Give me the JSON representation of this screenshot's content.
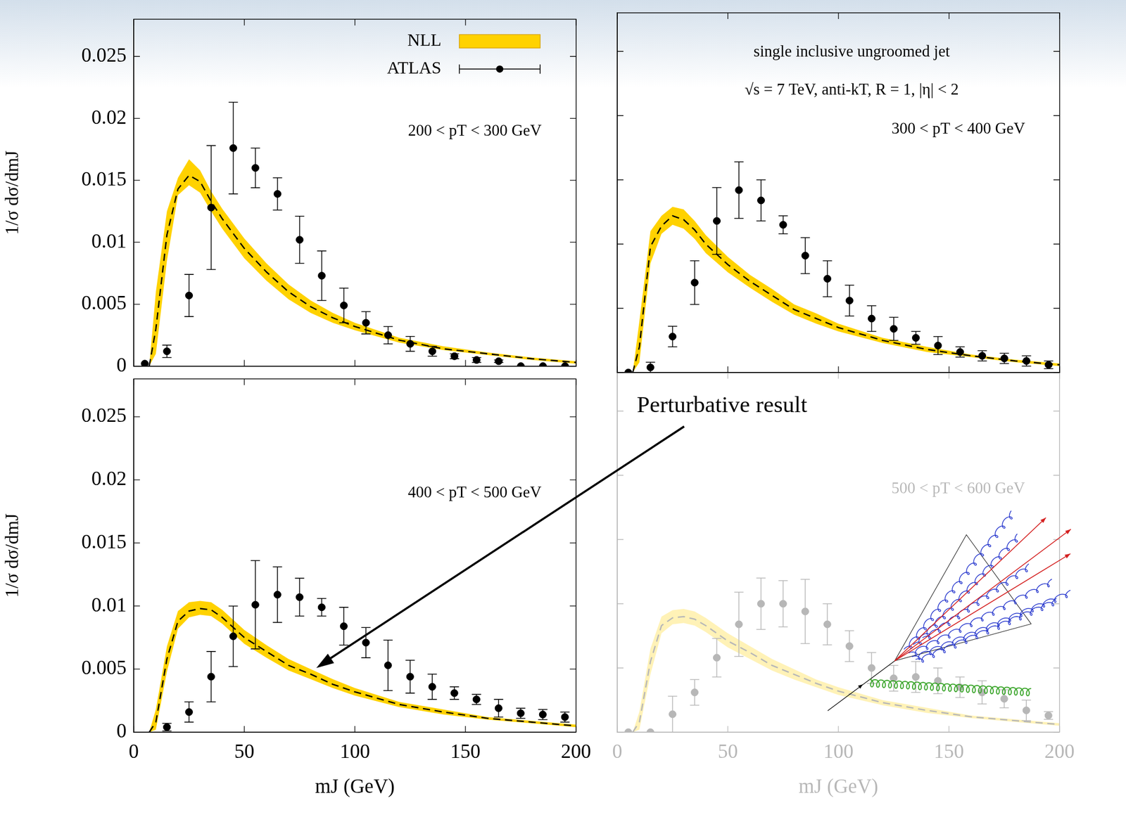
{
  "chart_data": [
    {
      "type": "line",
      "annotations": [
        "200 < pT < 300 GeV"
      ],
      "legend": "upper right",
      "y_label": "1/σ dσ/dmJ",
      "xlim": [
        0,
        200
      ],
      "xticks": [
        0,
        50,
        100,
        150,
        200
      ],
      "ylim": [
        0,
        0.028
      ],
      "yticks": [
        0,
        0.005,
        0.01,
        0.015,
        0.02,
        0.025
      ],
      "grid": false,
      "tick_labels": "y",
      "series": [
        {
          "name": "NLL",
          "type": "band",
          "color": "#ffd200",
          "x": [
            7,
            10,
            15,
            20,
            25,
            30,
            35,
            40,
            50,
            60,
            70,
            80,
            90,
            100,
            120,
            140,
            160,
            180,
            200
          ],
          "lower": [
            0,
            0.001,
            0.0085,
            0.0138,
            0.0146,
            0.014,
            0.0125,
            0.0111,
            0.0087,
            0.0069,
            0.0054,
            0.0043,
            0.0035,
            0.0029,
            0.0019,
            0.0013,
            0.0009,
            0.0005,
            0.0002
          ],
          "upper": [
            0,
            0.006,
            0.0125,
            0.0152,
            0.0167,
            0.0158,
            0.0141,
            0.0127,
            0.0103,
            0.0083,
            0.0066,
            0.0053,
            0.0043,
            0.0035,
            0.0023,
            0.0016,
            0.0011,
            0.0007,
            0.0004
          ]
        },
        {
          "type": "line",
          "line_style": "dashed",
          "color": "#000000",
          "x": [
            7,
            10,
            15,
            20,
            25,
            30,
            35,
            40,
            50,
            60,
            70,
            80,
            90,
            100,
            120,
            140,
            160,
            180,
            200
          ],
          "values": [
            0,
            0.003,
            0.0106,
            0.0143,
            0.0154,
            0.0149,
            0.0133,
            0.0119,
            0.0095,
            0.0076,
            0.006,
            0.0048,
            0.0039,
            0.0032,
            0.0021,
            0.0014,
            0.001,
            0.0006,
            0.0003
          ]
        },
        {
          "name": "ATLAS",
          "type": "scatter",
          "marker": "circle",
          "color": "#000000",
          "x": [
            5,
            15,
            25,
            35,
            45,
            55,
            65,
            75,
            85,
            95,
            105,
            115,
            125,
            135,
            145,
            155,
            165,
            175,
            185,
            195
          ],
          "values": [
            0.0002,
            0.0012,
            0.0057,
            0.0128,
            0.0176,
            0.016,
            0.0139,
            0.0102,
            0.0073,
            0.0049,
            0.0035,
            0.0025,
            0.0018,
            0.0012,
            0.0008,
            0.0005,
            0.0004,
            0,
            0,
            0
          ],
          "errors": [
            0,
            0.0005,
            0.0017,
            0.005,
            0.0037,
            0.0016,
            0.0013,
            0.0019,
            0.002,
            0.0014,
            0.0009,
            0.0007,
            0.0006,
            0.0004,
            0.0002,
            0.0002,
            0.0001,
            0,
            0,
            0
          ]
        }
      ]
    },
    {
      "type": "line",
      "annotations": [
        "single inclusive ungroomed jet",
        "√s = 7 TeV, anti-kT, R = 1, |η| < 2",
        "300 < pT < 400 GeV"
      ],
      "xlim": [
        0,
        200
      ],
      "xticks": [
        0,
        50,
        100,
        150,
        200
      ],
      "ylim": [
        0,
        0.028
      ],
      "yticks": [
        0,
        0.005,
        0.01,
        0.015,
        0.02,
        0.025
      ],
      "grid": false,
      "tick_labels": false,
      "series": [
        {
          "type": "band",
          "color": "#ffd200",
          "x": [
            7,
            10,
            15,
            20,
            25,
            30,
            35,
            40,
            50,
            60,
            70,
            80,
            90,
            100,
            120,
            140,
            160,
            180,
            200
          ],
          "lower": [
            0,
            0.0008,
            0.0085,
            0.0108,
            0.0115,
            0.0112,
            0.0104,
            0.0093,
            0.0078,
            0.0066,
            0.0055,
            0.0045,
            0.0038,
            0.0032,
            0.0023,
            0.0016,
            0.0012,
            0.0008,
            0.0005
          ],
          "upper": [
            0,
            0.004,
            0.011,
            0.0122,
            0.0129,
            0.0127,
            0.0118,
            0.0107,
            0.009,
            0.0076,
            0.0065,
            0.0053,
            0.0046,
            0.0038,
            0.0027,
            0.002,
            0.0014,
            0.001,
            0.0007
          ]
        },
        {
          "type": "line",
          "line_style": "dashed",
          "color": "#000000",
          "x": [
            7,
            10,
            15,
            20,
            25,
            30,
            35,
            40,
            50,
            60,
            70,
            80,
            90,
            100,
            120,
            140,
            160,
            180,
            200
          ],
          "values": [
            0,
            0.002,
            0.0098,
            0.0114,
            0.0122,
            0.0119,
            0.0111,
            0.01,
            0.0084,
            0.0071,
            0.006,
            0.0049,
            0.0042,
            0.0035,
            0.0025,
            0.0018,
            0.0013,
            0.0009,
            0.0006
          ]
        },
        {
          "type": "scatter",
          "marker": "circle",
          "color": "#000000",
          "x": [
            5,
            15,
            25,
            35,
            45,
            55,
            65,
            75,
            85,
            95,
            105,
            115,
            125,
            135,
            145,
            155,
            165,
            175,
            185,
            195
          ],
          "values": [
            0,
            0.0004,
            0.0028,
            0.007,
            0.0118,
            0.0142,
            0.0134,
            0.0115,
            0.0091,
            0.0073,
            0.0056,
            0.0042,
            0.0034,
            0.0027,
            0.0021,
            0.0016,
            0.0013,
            0.0011,
            0.0009,
            0.0006
          ],
          "errors": [
            0,
            0.0004,
            0.0008,
            0.0017,
            0.0026,
            0.0022,
            0.0016,
            0.0007,
            0.0014,
            0.0014,
            0.0012,
            0.001,
            0.0009,
            0.0005,
            0.0007,
            0.0004,
            0.0004,
            0.0004,
            0.0004,
            0.0003
          ]
        }
      ]
    },
    {
      "type": "line",
      "annotations": [
        "400 < pT < 500 GeV"
      ],
      "x_label": "mJ (GeV)",
      "y_label": "1/σ dσ/dmJ",
      "xlim": [
        0,
        200
      ],
      "xticks": [
        0,
        50,
        100,
        150,
        200
      ],
      "ylim": [
        0,
        0.028
      ],
      "yticks": [
        0,
        0.005,
        0.01,
        0.015,
        0.02,
        0.025
      ],
      "grid": false,
      "series": [
        {
          "type": "band",
          "color": "#ffd200",
          "x": [
            7,
            10,
            15,
            20,
            25,
            30,
            35,
            40,
            50,
            60,
            70,
            80,
            90,
            100,
            120,
            140,
            160,
            180,
            200
          ],
          "lower": [
            0,
            0.0002,
            0.0048,
            0.0082,
            0.0091,
            0.0093,
            0.0092,
            0.0086,
            0.007,
            0.0059,
            0.0049,
            0.0042,
            0.0035,
            0.0029,
            0.002,
            0.0014,
            0.001,
            0.0007,
            0.0004
          ],
          "upper": [
            0,
            0.0018,
            0.0068,
            0.0096,
            0.0103,
            0.0104,
            0.0103,
            0.0097,
            0.0081,
            0.0069,
            0.0058,
            0.005,
            0.0042,
            0.0035,
            0.0024,
            0.0018,
            0.0012,
            0.0009,
            0.0006
          ]
        },
        {
          "type": "line",
          "line_style": "dashed",
          "color": "#000000",
          "x": [
            7,
            10,
            15,
            20,
            25,
            30,
            35,
            40,
            50,
            60,
            70,
            80,
            90,
            100,
            120,
            140,
            160,
            180,
            200
          ],
          "values": [
            0,
            0.0008,
            0.0058,
            0.0088,
            0.0096,
            0.0098,
            0.0097,
            0.0091,
            0.0075,
            0.0064,
            0.0053,
            0.0046,
            0.0038,
            0.0032,
            0.0022,
            0.0016,
            0.0011,
            0.0008,
            0.0005
          ]
        },
        {
          "type": "scatter",
          "marker": "circle",
          "color": "#000000",
          "x": [
            15,
            25,
            35,
            45,
            55,
            65,
            75,
            85,
            95,
            105,
            115,
            125,
            135,
            145,
            155,
            165,
            175,
            185,
            195
          ],
          "values": [
            0.0004,
            0.0016,
            0.0044,
            0.0076,
            0.0101,
            0.0109,
            0.0107,
            0.0099,
            0.0084,
            0.0071,
            0.0053,
            0.0044,
            0.0036,
            0.0031,
            0.0026,
            0.0019,
            0.0015,
            0.0014,
            0.0012
          ],
          "errors": [
            0.0003,
            0.0008,
            0.002,
            0.0024,
            0.0035,
            0.0022,
            0.0015,
            0.0007,
            0.0015,
            0.0012,
            0.002,
            0.0013,
            0.001,
            0.0005,
            0.0004,
            0.0007,
            0.0004,
            0.0004,
            0.0004
          ]
        }
      ]
    },
    {
      "type": "line",
      "annotations": [
        "500 < pT < 600 GeV"
      ],
      "x_label": "mJ (GeV)",
      "xlim": [
        0,
        200
      ],
      "xticks": [
        0,
        50,
        100,
        150,
        200
      ],
      "ylim": [
        0,
        0.028
      ],
      "yticks": [
        0,
        0.005,
        0.01,
        0.015,
        0.02,
        0.025
      ],
      "grid": false,
      "tick_labels": "x",
      "series": [
        {
          "type": "band",
          "color": "#ffd200",
          "x": [
            7,
            10,
            15,
            20,
            25,
            30,
            35,
            40,
            50,
            60,
            70,
            80,
            90,
            100,
            120,
            140,
            160,
            180,
            200
          ],
          "lower": [
            0,
            0.0002,
            0.0045,
            0.0077,
            0.0084,
            0.0085,
            0.0083,
            0.0078,
            0.0066,
            0.0057,
            0.0048,
            0.0041,
            0.0035,
            0.0029,
            0.0021,
            0.0015,
            0.0011,
            0.0008,
            0.0005
          ],
          "upper": [
            0,
            0.0016,
            0.0065,
            0.009,
            0.0095,
            0.0096,
            0.0094,
            0.0089,
            0.0077,
            0.0067,
            0.0057,
            0.0049,
            0.0041,
            0.0035,
            0.0025,
            0.0019,
            0.0013,
            0.001,
            0.0007
          ]
        },
        {
          "type": "line",
          "line_style": "dashed",
          "color": "#000000",
          "x": [
            7,
            10,
            15,
            20,
            25,
            30,
            35,
            40,
            50,
            60,
            70,
            80,
            90,
            100,
            120,
            140,
            160,
            180,
            200
          ],
          "values": [
            0,
            0.0008,
            0.0055,
            0.0083,
            0.0089,
            0.009,
            0.0088,
            0.0083,
            0.0071,
            0.0062,
            0.0052,
            0.0045,
            0.0038,
            0.0032,
            0.0023,
            0.0017,
            0.0012,
            0.0009,
            0.0006
          ]
        },
        {
          "type": "scatter",
          "marker": "circle",
          "color": "#000000",
          "x": [
            5,
            15,
            25,
            35,
            45,
            55,
            65,
            75,
            85,
            95,
            105,
            115,
            125,
            135,
            145,
            155,
            165,
            175,
            185,
            195
          ],
          "values": [
            0,
            0,
            0.0014,
            0.0031,
            0.0058,
            0.0084,
            0.01,
            0.01,
            0.0094,
            0.0084,
            0.0067,
            0.005,
            0.0042,
            0.0043,
            0.004,
            0.0035,
            0.0031,
            0.0026,
            0.0017,
            0.0013
          ],
          "errors": [
            0,
            0,
            0.0014,
            0.001,
            0.0015,
            0.0025,
            0.002,
            0.0018,
            0.0025,
            0.0016,
            0.0012,
            0.0012,
            0.001,
            0.0012,
            0.001,
            0.0008,
            0.0009,
            0.0007,
            0.0008,
            0.0003
          ]
        }
      ]
    }
  ],
  "annotation": "Perturbative result"
}
